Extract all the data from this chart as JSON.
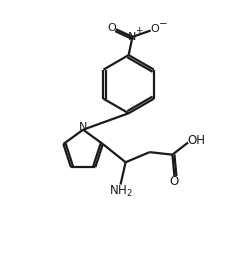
{
  "bg_color": "#ffffff",
  "line_color": "#1a1a1a",
  "lw": 1.6,
  "figsize": [
    2.32,
    2.67
  ],
  "dpi": 100,
  "xlim": [
    0,
    9
  ],
  "ylim": [
    0,
    10.5
  ]
}
